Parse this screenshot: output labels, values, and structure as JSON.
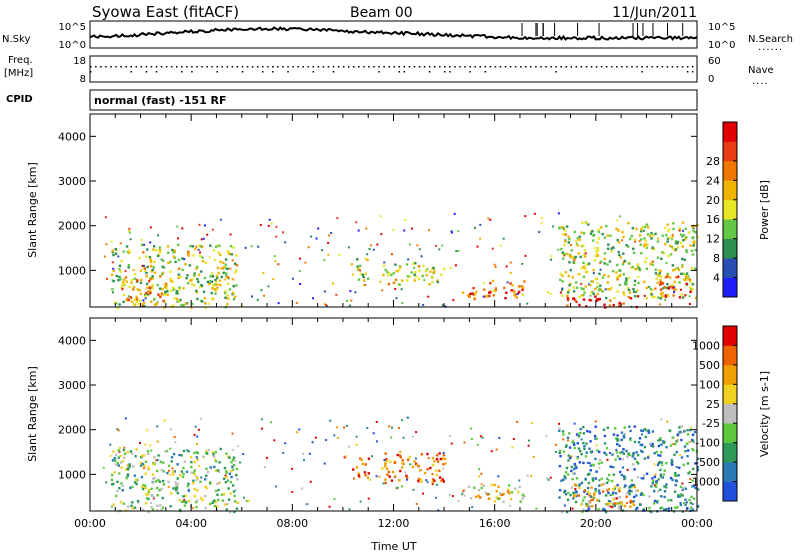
{
  "header": {
    "station": "Syowa East (fitACF)",
    "beam": "Beam 00",
    "date": "11/Jun/2011"
  },
  "chart_data": [
    {
      "type": "line",
      "panel": "noise",
      "left_label": "N.Sky",
      "right_label": "N.Search",
      "left_ticks": [
        "10^5",
        "10^0"
      ],
      "right_ticks": [
        "10^5",
        "10^0"
      ],
      "series": [
        {
          "name": "N.Sky",
          "style": "solid"
        },
        {
          "name": "N.Search",
          "style": "dotted"
        }
      ]
    },
    {
      "type": "scatter",
      "panel": "frequency",
      "left_label_top": "Freq.",
      "left_label_bottom": "[MHz]",
      "right_label": "Nave",
      "left_ticks": [
        "18",
        "8"
      ],
      "right_ticks": [
        "60",
        "0"
      ],
      "ylim_left": [
        8,
        18
      ],
      "ylim_right": [
        0,
        60
      ],
      "series": [
        {
          "name": "Freq.",
          "approx_value": 13
        },
        {
          "name": "Nave",
          "approx_value": 10
        }
      ]
    },
    {
      "type": "table",
      "panel": "cpid",
      "label": "CPID",
      "program": "normal (fast) -151 RF"
    },
    {
      "type": "heatmap",
      "panel": "power",
      "ylabel": "Slant Range [km]",
      "ylim": [
        180,
        4500
      ],
      "xlim_hours": [
        0,
        24
      ],
      "y_ticks": [
        "1000",
        "2000",
        "3000",
        "4000"
      ],
      "colorbar_label": "Power [dB]",
      "colorbar_ticks": [
        "4",
        "8",
        "12",
        "16",
        "20",
        "24",
        "28"
      ],
      "colorbar_colors": [
        "#1e1efa",
        "#2850b4",
        "#2d9050",
        "#64c846",
        "#e6e626",
        "#f0b400",
        "#f07800",
        "#e83c14",
        "#e00000"
      ],
      "echo_regions": [
        {
          "t0": 0.8,
          "t1": 5.8,
          "r0": 180,
          "r1": 1600,
          "level": 0.45
        },
        {
          "t0": 1.2,
          "t1": 3.0,
          "r0": 300,
          "r1": 900,
          "level": 0.65
        },
        {
          "t0": 10.3,
          "t1": 11.0,
          "r0": 800,
          "r1": 1300,
          "level": 0.45
        },
        {
          "t0": 11.5,
          "t1": 14.0,
          "r0": 700,
          "r1": 1200,
          "level": 0.5
        },
        {
          "t0": 14.6,
          "t1": 17.2,
          "r0": 400,
          "r1": 800,
          "level": 0.75
        },
        {
          "t0": 18.8,
          "t1": 21.7,
          "r0": 180,
          "r1": 450,
          "level": 0.92
        },
        {
          "t0": 18.5,
          "t1": 24.0,
          "r0": 400,
          "r1": 2100,
          "level": 0.45
        },
        {
          "t0": 22.3,
          "t1": 23.8,
          "r0": 400,
          "r1": 900,
          "level": 0.75
        }
      ]
    },
    {
      "type": "heatmap",
      "panel": "velocity",
      "ylabel": "Slant Range [km]",
      "ylim": [
        180,
        4500
      ],
      "xlim_hours": [
        0,
        24
      ],
      "y_ticks": [
        "1000",
        "2000",
        "3000",
        "4000"
      ],
      "x_ticks": [
        "00:00",
        "04:00",
        "08:00",
        "12:00",
        "16:00",
        "20:00",
        "00:00"
      ],
      "xlabel": "Time UT",
      "colorbar_label": "Velocity [m s-1]",
      "colorbar_ticks": [
        "1000",
        "500",
        "100",
        "25",
        "-25",
        "-100",
        "-500",
        "-1000"
      ],
      "colorbar_colors": [
        "#1e50dc",
        "#2a7ab4",
        "#2e9a5a",
        "#5cc83c",
        "#bebebe",
        "#f0d020",
        "#f0a000",
        "#f06400",
        "#e00000"
      ],
      "echo_regions": [
        {
          "t0": 0.8,
          "t1": 5.8,
          "r0": 180,
          "r1": 1600,
          "level": 0.4
        },
        {
          "t0": 10.3,
          "t1": 11.0,
          "r0": 900,
          "r1": 1400,
          "level": 0.9
        },
        {
          "t0": 11.5,
          "t1": 14.0,
          "r0": 800,
          "r1": 1500,
          "level": 0.8
        },
        {
          "t0": 14.6,
          "t1": 17.2,
          "r0": 400,
          "r1": 800,
          "level": 0.6
        },
        {
          "t0": 18.5,
          "t1": 24.0,
          "r0": 180,
          "r1": 2100,
          "level": 0.25
        },
        {
          "t0": 19.0,
          "t1": 21.5,
          "r0": 300,
          "r1": 800,
          "level": 0.7
        }
      ]
    }
  ]
}
